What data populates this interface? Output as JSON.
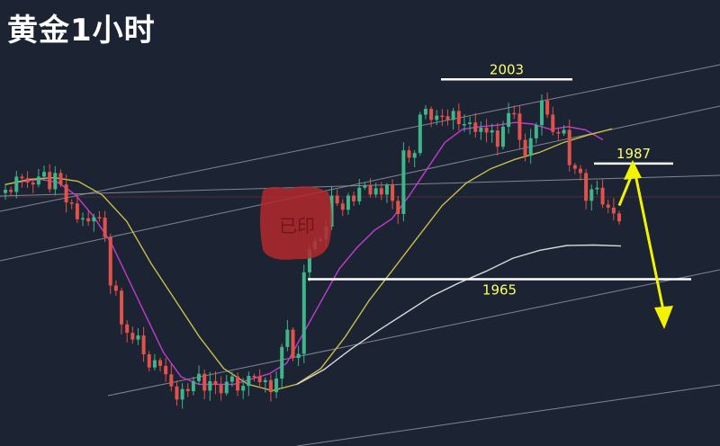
{
  "title": "黄金1小时",
  "watermark_text": "已印",
  "colors": {
    "background": "#1c2333",
    "bull": "#3fb58a",
    "bear": "#e0524a",
    "ma_fast": "#c23ccf",
    "ma_slow": "#c9bd4a",
    "ma_long": "#d8d8d8",
    "trendline": "#9a9fa8",
    "level_line": "#ffffff",
    "level_text": "#ffff66",
    "arrow": "#f3f300",
    "stamp": "#b3282d"
  },
  "chart_data": {
    "type": "candlestick",
    "title": "黄金1小时",
    "ylim": [
      1936,
      2014
    ],
    "horizontal_levels": [
      {
        "label": "2003",
        "value": 2003
      },
      {
        "label": "1987",
        "value": 1987
      },
      {
        "label": "1965",
        "value": 1965
      }
    ],
    "projection": {
      "from": 1979,
      "up_to": 1987,
      "down_to": 1962
    },
    "series": [
      {
        "name": "candles",
        "values": [
          1982.0,
          1981.6,
          1984.5,
          1984.2,
          1983.4,
          1983.0,
          1984.5,
          1985.4,
          1982.1,
          1985.2,
          1983.0,
          1979.6,
          1979.4,
          1976.4,
          1976.6,
          1976.0,
          1976.8,
          1976.7,
          1973.0,
          1963.8,
          1962.8,
          1956.4,
          1954.8,
          1953.5,
          1954.3,
          1950.7,
          1948.2,
          1949.6,
          1948.5,
          1946.9,
          1944.6,
          1942.1,
          1944.1,
          1943.7,
          1945.6,
          1947.0,
          1943.8,
          1945.6,
          1944.9,
          1943.3,
          1945.5,
          1946.5,
          1943.8,
          1944.7,
          1946.6,
          1946.5,
          1945.4,
          1945.8,
          1943.5,
          1946.1,
          1952.1,
          1955.4,
          1950.0,
          1950.8,
          1966.3,
          1970.7,
          1972.3,
          1972.6,
          1975.0,
          1980.9,
          1979.4,
          1978.2,
          1980.9,
          1979.8,
          1982.4,
          1982.8,
          1981.1,
          1982.3,
          1981.1,
          1982.9,
          1979.9,
          1977.4,
          1989.5,
          1988.1,
          1989.0,
          1996.3,
          1997.4,
          1995.3,
          1996.1,
          1996.0,
          1995.3,
          1997.0,
          1994.5,
          1994.5,
          1994.8,
          1993.0,
          1993.8,
          1992.9,
          1993.3,
          1990.2,
          1994.0,
          1996.6,
          1996.5,
          1991.5,
          1988.5,
          1991.8,
          1994.3,
          1999.0,
          1996.3,
          1993.0,
          1992.7,
          1993.4,
          1986.7,
          1986.0,
          1985.2,
          1979.9,
          1982.1,
          1982.4,
          1979.2,
          1978.6,
          1977.5,
          1976.0
        ]
      },
      {
        "name": "ma_fast",
        "values": [
          1983,
          1983.6,
          1984,
          1983.4,
          1981,
          1977,
          1972,
          1965,
          1958,
          1951,
          1946.4,
          1945,
          1945,
          1945,
          1946,
          1947,
          1949,
          1955,
          1961,
          1967,
          1971,
          1974.3,
          1976.5,
          1981,
          1986,
          1991,
          1993.5,
          1994,
          1994.3,
          1994.8,
          1994.5,
          1993.5,
          1994,
          1993.4,
          1991.5
        ]
      },
      {
        "name": "ma_slow",
        "values": [
          1983,
          1984,
          1984.3,
          1983.6,
          1981,
          1976,
          1968,
          1961,
          1954,
          1948,
          1945,
          1943.8,
          1945,
          1948,
          1954,
          1961,
          1967,
          1973,
          1979,
          1983.3,
          1986,
          1987.8,
          1989.1,
          1991,
          1992.4,
          1993.6
        ]
      },
      {
        "name": "ma_long",
        "values": [
          1945,
          1947.8,
          1951.7,
          1955.2,
          1958.5,
          1961.8,
          1964.3,
          1966.5,
          1969,
          1970.5,
          1971.4,
          1971.5,
          1971.3
        ]
      }
    ]
  }
}
